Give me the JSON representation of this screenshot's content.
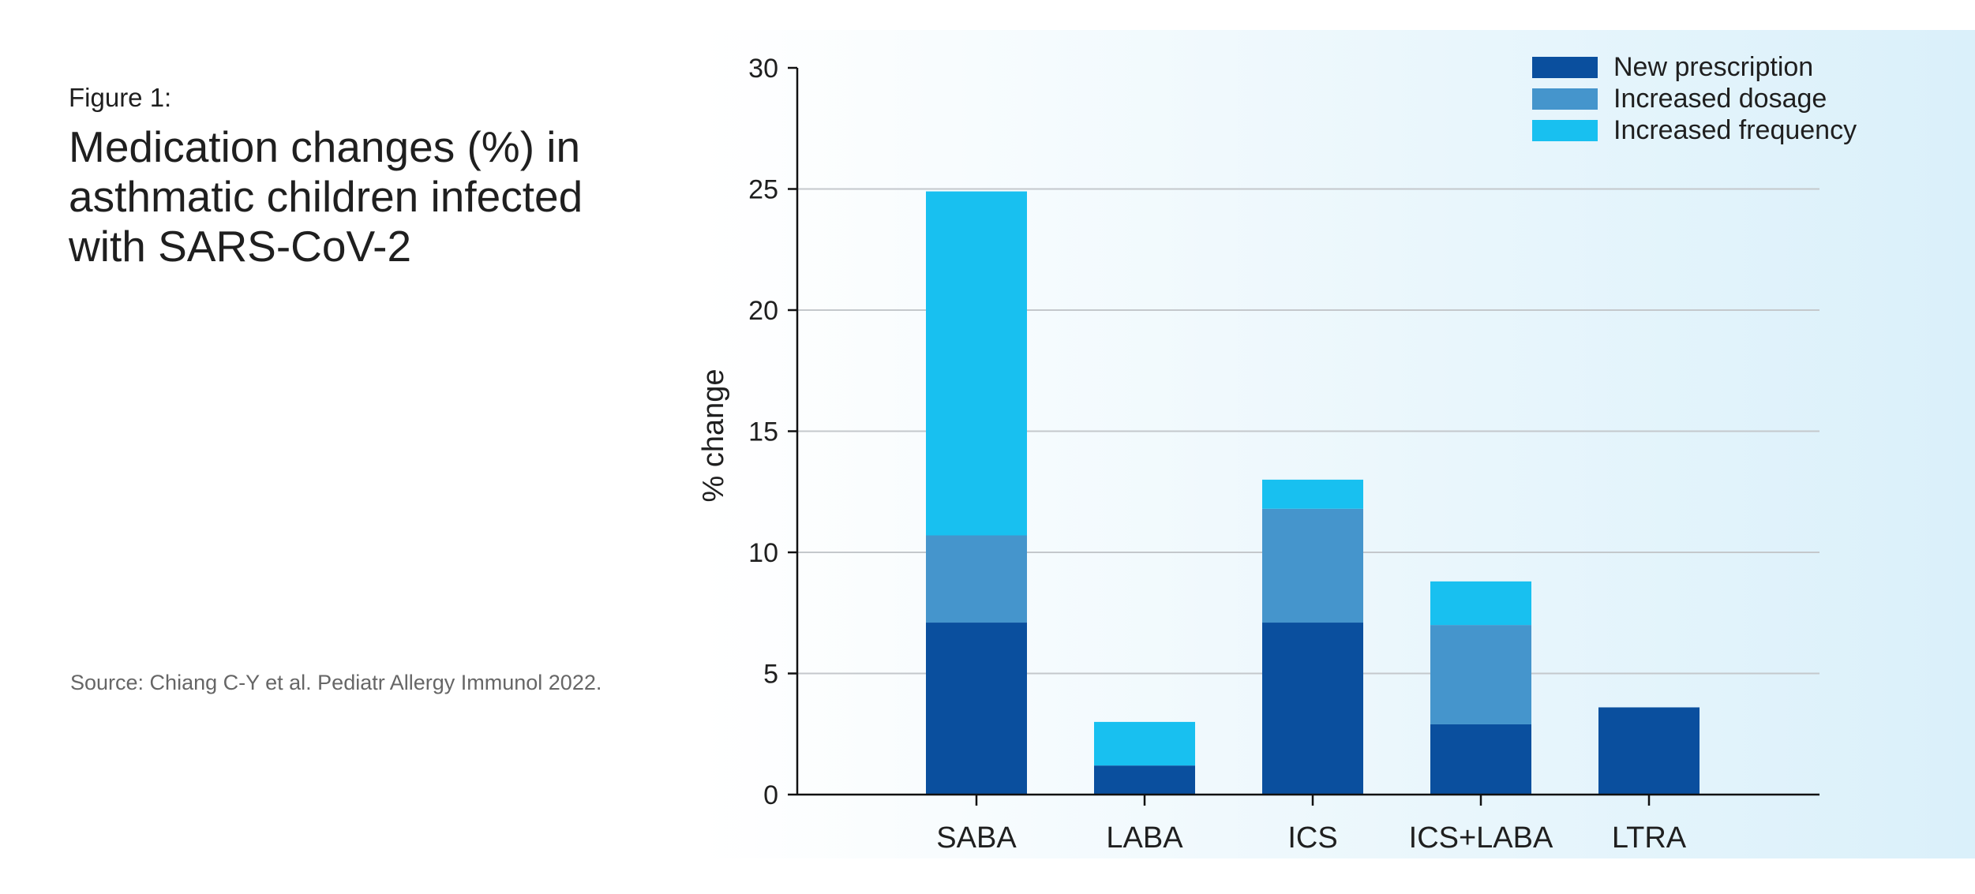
{
  "figure": {
    "label": "Figure 1:",
    "title": "Medication changes (%) in asthmatic children infected with SARS-CoV-2",
    "source": "Source: Chiang C-Y et al. Pediatr Allergy Immunol 2022."
  },
  "chart_data": {
    "type": "bar",
    "stacked": true,
    "categories": [
      "SABA",
      "LABA",
      "ICS",
      "ICS+LABA",
      "LTRA"
    ],
    "series": [
      {
        "name": "New prescription",
        "values": [
          7.1,
          1.2,
          7.1,
          2.9,
          3.6
        ],
        "color": "#0a4f9e"
      },
      {
        "name": "Increased dosage",
        "values": [
          3.6,
          0,
          4.7,
          4.1,
          0
        ],
        "color": "#4595cc"
      },
      {
        "name": "Increased frequency",
        "values": [
          14.2,
          1.8,
          1.2,
          1.8,
          0
        ],
        "color": "#18c0f0"
      }
    ],
    "xlabel": "",
    "ylabel": "% change",
    "ylim": [
      0,
      30
    ],
    "yticks": [
      0,
      5,
      10,
      15,
      20,
      25,
      30
    ],
    "grid": true,
    "legend_position": "top-right",
    "background_gradient": [
      "#ffffff",
      "#daf0fa"
    ]
  }
}
